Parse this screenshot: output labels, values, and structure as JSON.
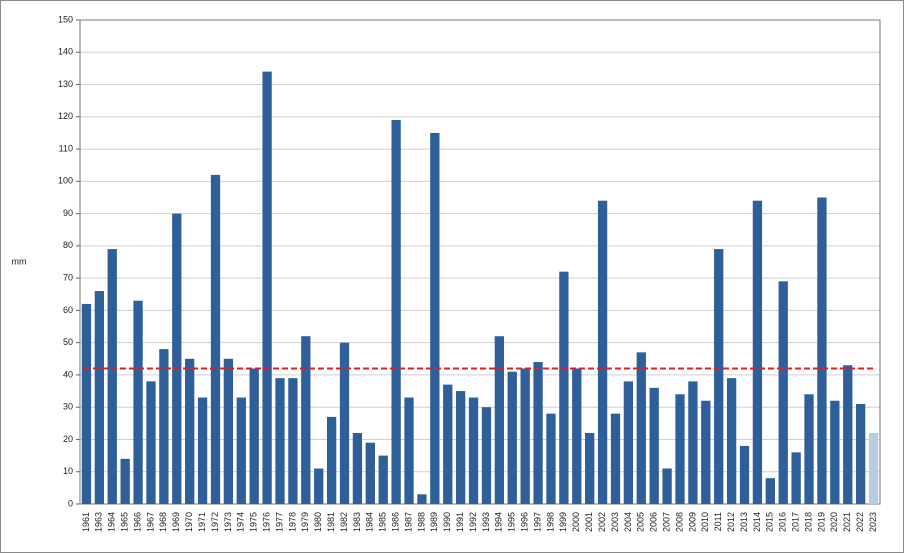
{
  "chart_data": {
    "type": "bar",
    "y_label": "mm",
    "categories": [
      "1961",
      "1963",
      "1964",
      "1965",
      "1966",
      "1967",
      "1968",
      "1969",
      "1970",
      "1971",
      "1972",
      "1973",
      "1974",
      "1975",
      "1976",
      "1977",
      "1978",
      "1979",
      "1980",
      "1981",
      "1982",
      "1983",
      "1984",
      "1985",
      "1986",
      "1987",
      "1988",
      "1989",
      "1990",
      "1991",
      "1992",
      "1993",
      "1994",
      "1995",
      "1996",
      "1997",
      "1998",
      "1999",
      "2000",
      "2001",
      "2002",
      "2003",
      "2004",
      "2005",
      "2006",
      "2007",
      "2008",
      "2009",
      "2010",
      "2011",
      "2012",
      "2013",
      "2014",
      "2015",
      "2016",
      "2017",
      "2018",
      "2019",
      "2020",
      "2021",
      "2022",
      "2023"
    ],
    "values": [
      62,
      66,
      79,
      14,
      63,
      38,
      48,
      90,
      45,
      33,
      102,
      45,
      33,
      42,
      134,
      39,
      39,
      52,
      11,
      27,
      50,
      22,
      19,
      15,
      119,
      33,
      3,
      115,
      37,
      35,
      33,
      30,
      52,
      41,
      42,
      44,
      28,
      72,
      42,
      22,
      94,
      28,
      38,
      47,
      36,
      11,
      34,
      38,
      32,
      79,
      39,
      18,
      94,
      8,
      69,
      16,
      34,
      95,
      32,
      43,
      31,
      22
    ],
    "color": "#2e5f99",
    "colors": [
      "#2e5f99",
      "#2e5f99",
      "#2e5f99",
      "#2e5f99",
      "#2e5f99",
      "#2e5f99",
      "#2e5f99",
      "#2e5f99",
      "#2e5f99",
      "#2e5f99",
      "#2e5f99",
      "#2e5f99",
      "#2e5f99",
      "#2e5f99",
      "#2e5f99",
      "#2e5f99",
      "#2e5f99",
      "#2e5f99",
      "#2e5f99",
      "#2e5f99",
      "#2e5f99",
      "#2e5f99",
      "#2e5f99",
      "#2e5f99",
      "#2e5f99",
      "#2e5f99",
      "#2e5f99",
      "#2e5f99",
      "#2e5f99",
      "#2e5f99",
      "#2e5f99",
      "#2e5f99",
      "#2e5f99",
      "#2e5f99",
      "#2e5f99",
      "#2e5f99",
      "#2e5f99",
      "#2e5f99",
      "#2e5f99",
      "#2e5f99",
      "#2e5f99",
      "#2e5f99",
      "#2e5f99",
      "#2e5f99",
      "#2e5f99",
      "#2e5f99",
      "#2e5f99",
      "#2e5f99",
      "#2e5f99",
      "#2e5f99",
      "#2e5f99",
      "#2e5f99",
      "#2e5f99",
      "#2e5f99",
      "#2e5f99",
      "#2e5f99",
      "#2e5f99",
      "#2e5f99",
      "#2e5f99",
      "#2e5f99",
      "#2e5f99",
      "#b8cce4"
    ],
    "reference_line": {
      "value": 42,
      "color": "#e02020",
      "style": "dashed"
    },
    "ylim": [
      0,
      150
    ],
    "yticks": [
      0,
      10,
      20,
      30,
      40,
      50,
      60,
      70,
      80,
      90,
      100,
      110,
      120,
      130,
      140,
      150
    ],
    "grid": true
  }
}
